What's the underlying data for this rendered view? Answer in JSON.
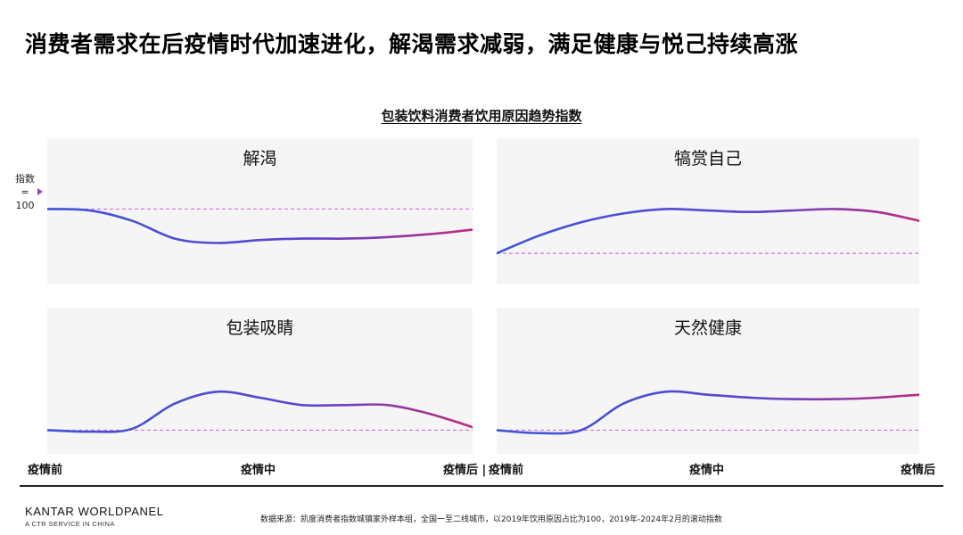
{
  "page": {
    "title": "消费者需求在后疫情时代加速进化，解渴需求减弱，满足健康与悦己持续高涨"
  },
  "chart_title": "包装饮料消费者饮用原因趋势指数",
  "y_reference": {
    "label_line1": "指数",
    "label_line2": "=",
    "label_line3": "100",
    "value": 100
  },
  "x_labels": {
    "left": [
      "疫情前",
      "疫情中",
      "疫情后 |"
    ],
    "right": [
      "疫情前",
      "疫情中",
      "疫情后"
    ]
  },
  "colors": {
    "line_start": "#3d55d6",
    "line_end": "#c0297e",
    "baseline": "#d66ce0",
    "panel_bg": "#f5f5f5"
  },
  "chart_data": [
    {
      "type": "line",
      "title": "解渴",
      "baseline": 100,
      "ylim": [
        55,
        125
      ],
      "x": [
        0,
        0.1,
        0.2,
        0.3,
        0.4,
        0.5,
        0.6,
        0.7,
        0.8,
        0.9,
        1.0
      ],
      "values": [
        100,
        99,
        92,
        80,
        77,
        79,
        80,
        80,
        81,
        83,
        86
      ]
    },
    {
      "type": "line",
      "title": "犒赏自己",
      "baseline": 100,
      "ylim": [
        85,
        155
      ],
      "x": [
        0,
        0.1,
        0.2,
        0.3,
        0.4,
        0.5,
        0.6,
        0.7,
        0.8,
        0.9,
        1.0
      ],
      "values": [
        100,
        112,
        121,
        127,
        130,
        129,
        128,
        129,
        130,
        128,
        122
      ]
    },
    {
      "type": "line",
      "title": "包装吸睛",
      "baseline": 100,
      "ylim": [
        90,
        160
      ],
      "x": [
        0,
        0.1,
        0.2,
        0.3,
        0.4,
        0.5,
        0.6,
        0.7,
        0.8,
        0.9,
        1.0
      ],
      "values": [
        100,
        99,
        101,
        118,
        126,
        122,
        117,
        117,
        117,
        111,
        102
      ]
    },
    {
      "type": "line",
      "title": "天然健康",
      "baseline": 100,
      "ylim": [
        90,
        160
      ],
      "x": [
        0,
        0.1,
        0.2,
        0.3,
        0.4,
        0.5,
        0.6,
        0.7,
        0.8,
        0.9,
        1.0
      ],
      "values": [
        100,
        98,
        100,
        118,
        126,
        124,
        122,
        121,
        121,
        122,
        124
      ]
    }
  ],
  "footer": {
    "brand": "KANTAR WORLDPANEL",
    "brand_sub": "A CTR SERVICE IN CHINA",
    "source": "数据来源：凯度消费者指数城镇家外样本组，全国一至二线城市，以2019年饮用原因占比为100，2019年-2024年2月的滚动指数"
  }
}
